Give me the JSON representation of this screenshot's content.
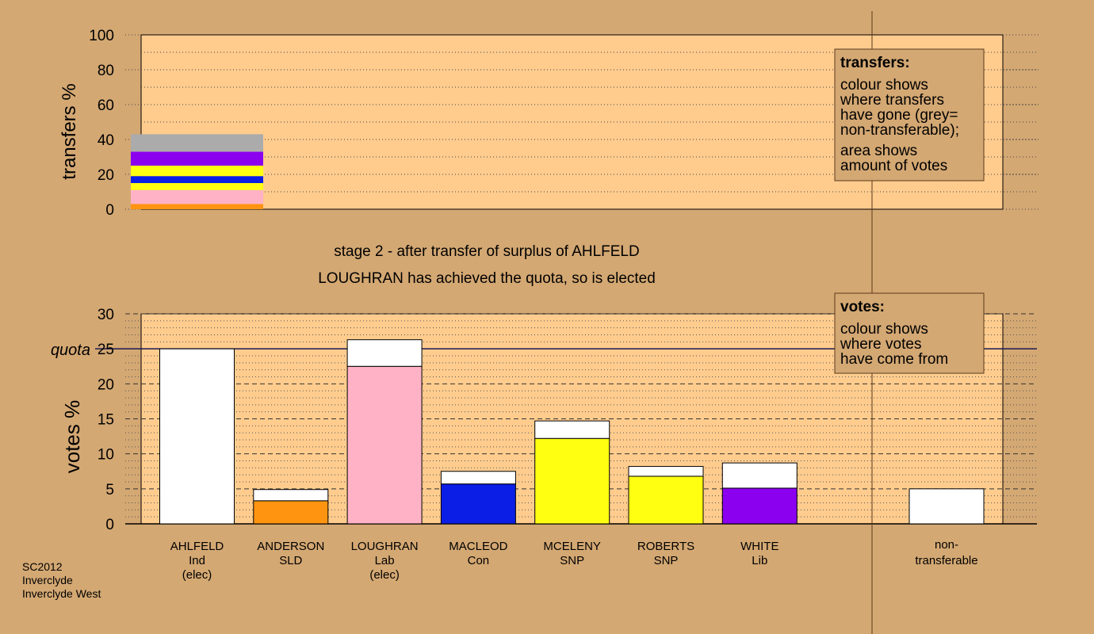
{
  "colors": {
    "background": "#D4A873",
    "plot_bg": "#FFCC8E",
    "orange": "#FF9411",
    "pink": "#FFB2C6",
    "blue": "#0A1EE6",
    "yellow": "#FFFF11",
    "purple": "#8B00EE",
    "grey": "#ABABAB",
    "white": "#FFFFFF"
  },
  "header": {
    "stage_text": "stage 2 - after transfer of surplus of AHLFELD",
    "elected_text": "LOUGHRAN has achieved the quota, so is elected"
  },
  "footer": {
    "line1": "SC2012",
    "line2": "Inverclyde",
    "line3": "Inverclyde West"
  },
  "legends": {
    "transfers": {
      "title": "transfers:",
      "lines": [
        "colour shows",
        "where transfers",
        "have gone (grey=",
        "non-transferable);"
      ],
      "lines2": [
        "area shows",
        "amount of votes"
      ]
    },
    "votes": {
      "title": "votes:",
      "lines": [
        "colour shows",
        "where votes",
        "have come from"
      ]
    }
  },
  "chart_data": [
    {
      "type": "bar",
      "stacked": true,
      "ylabel": "transfers %",
      "ylim": [
        0,
        100
      ],
      "yticks": [
        "0",
        "20",
        "40",
        "60",
        "80",
        "100"
      ],
      "grid": true,
      "transferring_candidate": "AHLFELD",
      "segments": [
        {
          "color": "orange",
          "value": 3
        },
        {
          "color": "pink",
          "value": 8
        },
        {
          "color": "yellow",
          "value": 4
        },
        {
          "color": "blue",
          "value": 4
        },
        {
          "color": "yellow",
          "value": 6
        },
        {
          "color": "purple",
          "value": 8
        },
        {
          "color": "grey",
          "value": 10
        }
      ]
    },
    {
      "type": "bar",
      "stacked": true,
      "ylabel": "votes %",
      "ylim": [
        0,
        30
      ],
      "yticks": [
        "0",
        "5",
        "10",
        "15",
        "20",
        "25",
        "30"
      ],
      "quota_label": "quota",
      "quota": 25,
      "grid": true,
      "candidates": [
        {
          "name": "AHLFELD",
          "party": "Ind",
          "note": "(elec)",
          "base_color": "white",
          "base": 25,
          "transfer": 0
        },
        {
          "name": "ANDERSON",
          "party": "SLD",
          "note": "",
          "base_color": "orange",
          "base": 3.3,
          "transfer": 1.6
        },
        {
          "name": "LOUGHRAN",
          "party": "Lab",
          "note": "(elec)",
          "base_color": "pink",
          "base": 22.5,
          "transfer": 3.8
        },
        {
          "name": "MACLEOD",
          "party": "Con",
          "note": "",
          "base_color": "blue",
          "base": 5.7,
          "transfer": 1.8
        },
        {
          "name": "MCELENY",
          "party": "SNP",
          "note": "",
          "base_color": "yellow",
          "base": 12.2,
          "transfer": 2.5
        },
        {
          "name": "ROBERTS",
          "party": "SNP",
          "note": "",
          "base_color": "yellow",
          "base": 6.8,
          "transfer": 1.4
        },
        {
          "name": "WHITE",
          "party": "Lib",
          "note": "",
          "base_color": "purple",
          "base": 5.1,
          "transfer": 3.6
        }
      ],
      "nontransferable": {
        "label1": "non-",
        "label2": "transferable",
        "value": 5
      }
    }
  ]
}
